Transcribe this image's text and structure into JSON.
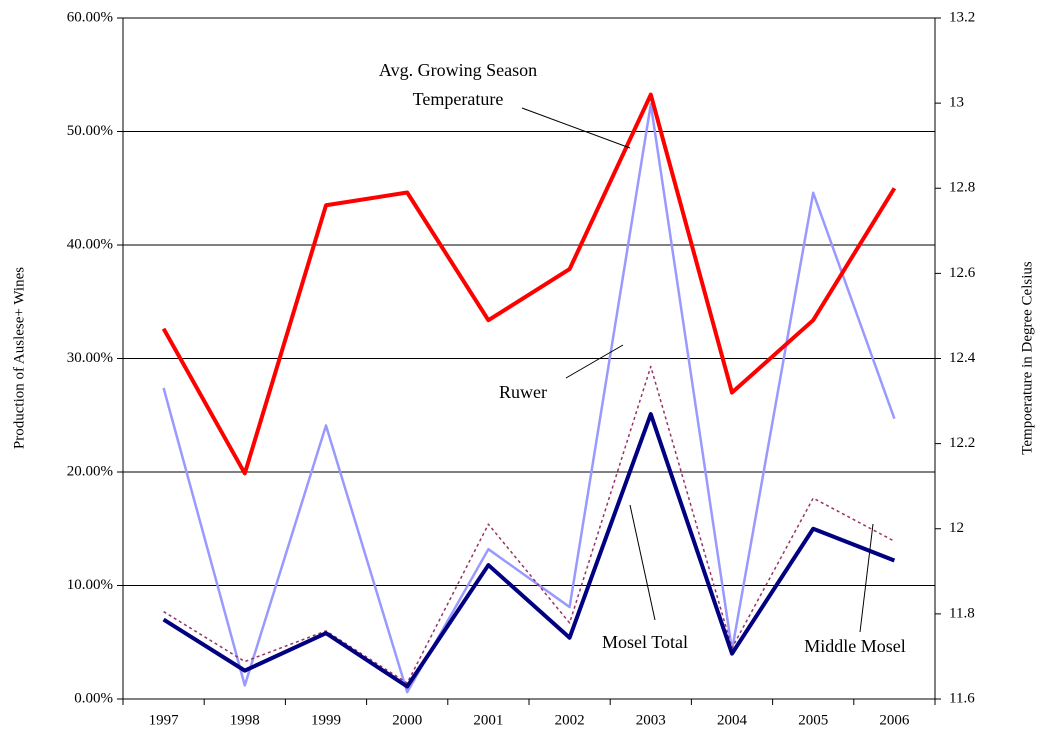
{
  "chart_data": {
    "type": "line",
    "categories": [
      "1997",
      "1998",
      "1999",
      "2000",
      "2001",
      "2002",
      "2003",
      "2004",
      "2005",
      "2006"
    ],
    "ylabel": "Production of Auslese+ Wines",
    "y2label": "Tempoerature in Degree Celsius",
    "ylim": [
      0,
      60
    ],
    "yticks": [
      {
        "value": 0,
        "label": "0.00%"
      },
      {
        "value": 10,
        "label": "10.00%"
      },
      {
        "value": 20,
        "label": "20.00%"
      },
      {
        "value": 30,
        "label": "30.00%"
      },
      {
        "value": 40,
        "label": "40.00%"
      },
      {
        "value": 50,
        "label": "50.00%"
      },
      {
        "value": 60,
        "label": "60.00%"
      }
    ],
    "y2lim": [
      11.6,
      13.2
    ],
    "y2ticks": [
      11.6,
      11.8,
      12,
      12.2,
      12.4,
      12.6,
      12.8,
      13,
      13.2
    ],
    "grid": true,
    "series": [
      {
        "name": "Ruwer",
        "color": "#9999ff",
        "width": 2.5,
        "dash": false,
        "values": [
          27.4,
          1.2,
          24.1,
          0.6,
          13.2,
          8.1,
          52.4,
          4.3,
          44.6,
          24.7
        ]
      },
      {
        "name": "Middle Mosel",
        "color": "#993366",
        "width": 1.5,
        "dash": true,
        "values": [
          7.7,
          3.3,
          6.0,
          1.4,
          15.4,
          6.7,
          29.3,
          4.5,
          17.7,
          13.9
        ]
      },
      {
        "name": "Mosel Total",
        "color": "#000080",
        "width": 4,
        "dash": false,
        "values": [
          7.0,
          2.5,
          5.8,
          1.1,
          11.8,
          5.4,
          25.1,
          4.0,
          15.0,
          12.2
        ]
      },
      {
        "name": "Avg. Growing Season Temperature",
        "color": "#ff0000",
        "width": 4,
        "dash": false,
        "axis": "y2",
        "values": [
          12.47,
          12.13,
          12.76,
          12.79,
          12.49,
          12.61,
          13.02,
          12.32,
          12.49,
          12.8
        ]
      }
    ],
    "annotations": [
      {
        "lines": [
          "Avg. Growing Season",
          "Temperature"
        ]
      },
      {
        "lines": [
          "Ruwer"
        ]
      },
      {
        "lines": [
          "Mosel Total"
        ]
      },
      {
        "lines": [
          "Middle Mosel"
        ]
      }
    ]
  }
}
